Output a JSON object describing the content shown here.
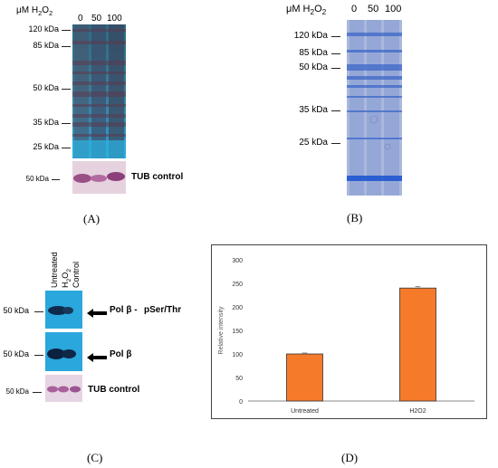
{
  "panel_a": {
    "concentration_unit": "μM H2O2",
    "lanes": [
      "0",
      "50",
      "100"
    ],
    "markers": [
      "120 kDa",
      "85 kDa",
      "50 kDa",
      "35 kDa",
      "25 kDa"
    ],
    "tub_marker": "50 kDa",
    "tub_label": "TUB control",
    "letter": "(A)"
  },
  "panel_b": {
    "concentration_unit": "μM H2O2",
    "lanes": [
      "0",
      "50",
      "100"
    ],
    "markers": [
      "120 kDa",
      "85 kDa",
      "50 kDa",
      "35 kDa",
      "25 kDa"
    ],
    "letter": "(B)"
  },
  "panel_c": {
    "lanes": [
      "Untreated",
      "H2O2",
      "Control"
    ],
    "markers": [
      "50 kDa",
      "50 kDa",
      "50 kDa"
    ],
    "labels": {
      "pol_phospho": "Pol β -",
      "pser_thr": "pSer/Thr",
      "pol": "Pol β",
      "tub": "TUB control"
    },
    "letter": "(C)"
  },
  "panel_d": {
    "letter": "(D)"
  },
  "chart_data": {
    "type": "bar",
    "categories": [
      "Untreated",
      "H2O2"
    ],
    "values": [
      100,
      240
    ],
    "errors": [
      2,
      3
    ],
    "title": "",
    "xlabel": "",
    "ylabel": "Relative intensity",
    "ylim": [
      0,
      300
    ],
    "yticks": [
      "0",
      "50",
      "100",
      "150",
      "200",
      "250",
      "300"
    ],
    "grid": false,
    "bar_color": "#f57a2a"
  }
}
